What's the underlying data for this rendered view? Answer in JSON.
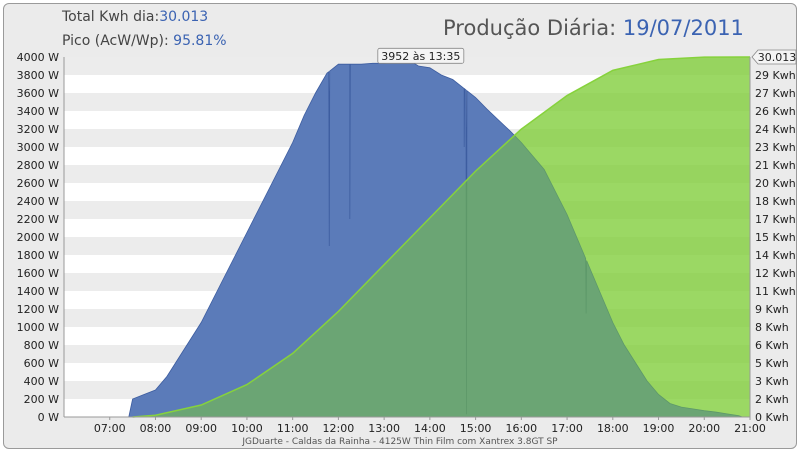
{
  "header": {
    "total_label": "Total Kwh dia:",
    "total_value": "30.013",
    "peak_label": "Pico (AcW/Wp):",
    "peak_value": "95.81%",
    "title": "Produção Diária:",
    "date": "19/07/2011"
  },
  "footer": "JGDuarte  -  Caldas da Rainha  -  4125W Thin Film com Xantrex 3.8GT SP",
  "colors": {
    "power_fill": "#5b7bb9",
    "power_stroke": "#3d5da0",
    "energy_fill": "rgba(150,220,60,0.55)",
    "energy_line": "#86d23c",
    "band_odd": "#ececec",
    "band_even": "#ffffff"
  },
  "chart_data": {
    "type": "area",
    "x_unit": "time",
    "xlim": [
      "06:00",
      "21:00"
    ],
    "x_ticks": [
      "07:00",
      "08:00",
      "09:00",
      "10:00",
      "11:00",
      "12:00",
      "13:00",
      "14:00",
      "15:00",
      "16:00",
      "17:00",
      "18:00",
      "19:00",
      "20:00",
      "21:00"
    ],
    "y_left": {
      "ylim": [
        0,
        4000
      ],
      "ticks": [
        "0 W",
        "200 W",
        "400 W",
        "600 W",
        "800 W",
        "1000 W",
        "1200 W",
        "1400 W",
        "1600 W",
        "1800 W",
        "2000 W",
        "2200 W",
        "2400 W",
        "2600 W",
        "2800 W",
        "3000 W",
        "3200 W",
        "3400 W",
        "3600 W",
        "3800 W",
        "4000 W"
      ]
    },
    "y_right": {
      "ylim": [
        0,
        30.013
      ],
      "ticks": [
        "0 Kwh",
        "2 Kwh",
        "3 Kwh",
        "5 Kwh",
        "6 Kwh",
        "8 Kwh",
        "9 Kwh",
        "11 Kwh",
        "12 Kwh",
        "14 Kwh",
        "15 Kwh",
        "17 Kwh",
        "18 Kwh",
        "20 Kwh",
        "21 Kwh",
        "23 Kwh",
        "24 Kwh",
        "26 Kwh",
        "27 Kwh",
        "29 Kwh",
        "30.013"
      ]
    },
    "series": [
      {
        "kind": "power",
        "x": [
          "07:25",
          "07:30",
          "07:45",
          "08:00",
          "08:15",
          "08:30",
          "08:45",
          "09:00",
          "09:15",
          "09:30",
          "09:45",
          "10:00",
          "10:15",
          "10:30",
          "10:45",
          "11:00",
          "11:15",
          "11:30",
          "11:45",
          "12:00",
          "12:15",
          "12:30",
          "12:45",
          "13:00",
          "13:15",
          "13:30",
          "13:35",
          "13:45",
          "14:00",
          "14:15",
          "14:30",
          "14:45",
          "15:00",
          "15:15",
          "15:30",
          "15:45",
          "16:00",
          "16:15",
          "16:30",
          "16:45",
          "17:00",
          "17:15",
          "17:30",
          "17:45",
          "18:00",
          "18:15",
          "18:30",
          "18:45",
          "19:00",
          "19:15",
          "19:30",
          "19:45",
          "20:00",
          "20:15",
          "20:30",
          "20:45",
          "20:50"
        ],
        "values": [
          0,
          200,
          250,
          300,
          450,
          650,
          850,
          1050,
          1300,
          1550,
          1800,
          2050,
          2300,
          2550,
          2800,
          3050,
          3350,
          3600,
          3820,
          3920,
          3920,
          3920,
          3930,
          3930,
          3940,
          3945,
          3952,
          3900,
          3880,
          3800,
          3750,
          3650,
          3550,
          3420,
          3300,
          3180,
          3050,
          2900,
          2750,
          2500,
          2250,
          1950,
          1650,
          1350,
          1050,
          800,
          600,
          400,
          250,
          150,
          110,
          90,
          70,
          55,
          35,
          15,
          0
        ],
        "dips": [
          {
            "x": "11:48",
            "value": 1900
          },
          {
            "x": "12:15",
            "value": 2200
          },
          {
            "x": "14:45",
            "value": 3000
          },
          {
            "x": "14:48",
            "value": 30
          },
          {
            "x": "17:25",
            "value": 1150
          }
        ]
      },
      {
        "kind": "energy",
        "x": [
          "07:30",
          "08:00",
          "09:00",
          "10:00",
          "11:00",
          "12:00",
          "13:00",
          "14:00",
          "15:00",
          "16:00",
          "17:00",
          "18:00",
          "19:00",
          "20:00",
          "20:50"
        ],
        "values": [
          0,
          0.15,
          1.0,
          2.7,
          5.3,
          8.8,
          12.7,
          16.6,
          20.5,
          24.0,
          26.8,
          28.9,
          29.8,
          30.0,
          30.013
        ]
      }
    ],
    "annotation": {
      "x": "13:35",
      "value": 3952,
      "text": "3952 às 13:35"
    },
    "right_label": "30.013",
    "grid": "horizontal bands"
  }
}
